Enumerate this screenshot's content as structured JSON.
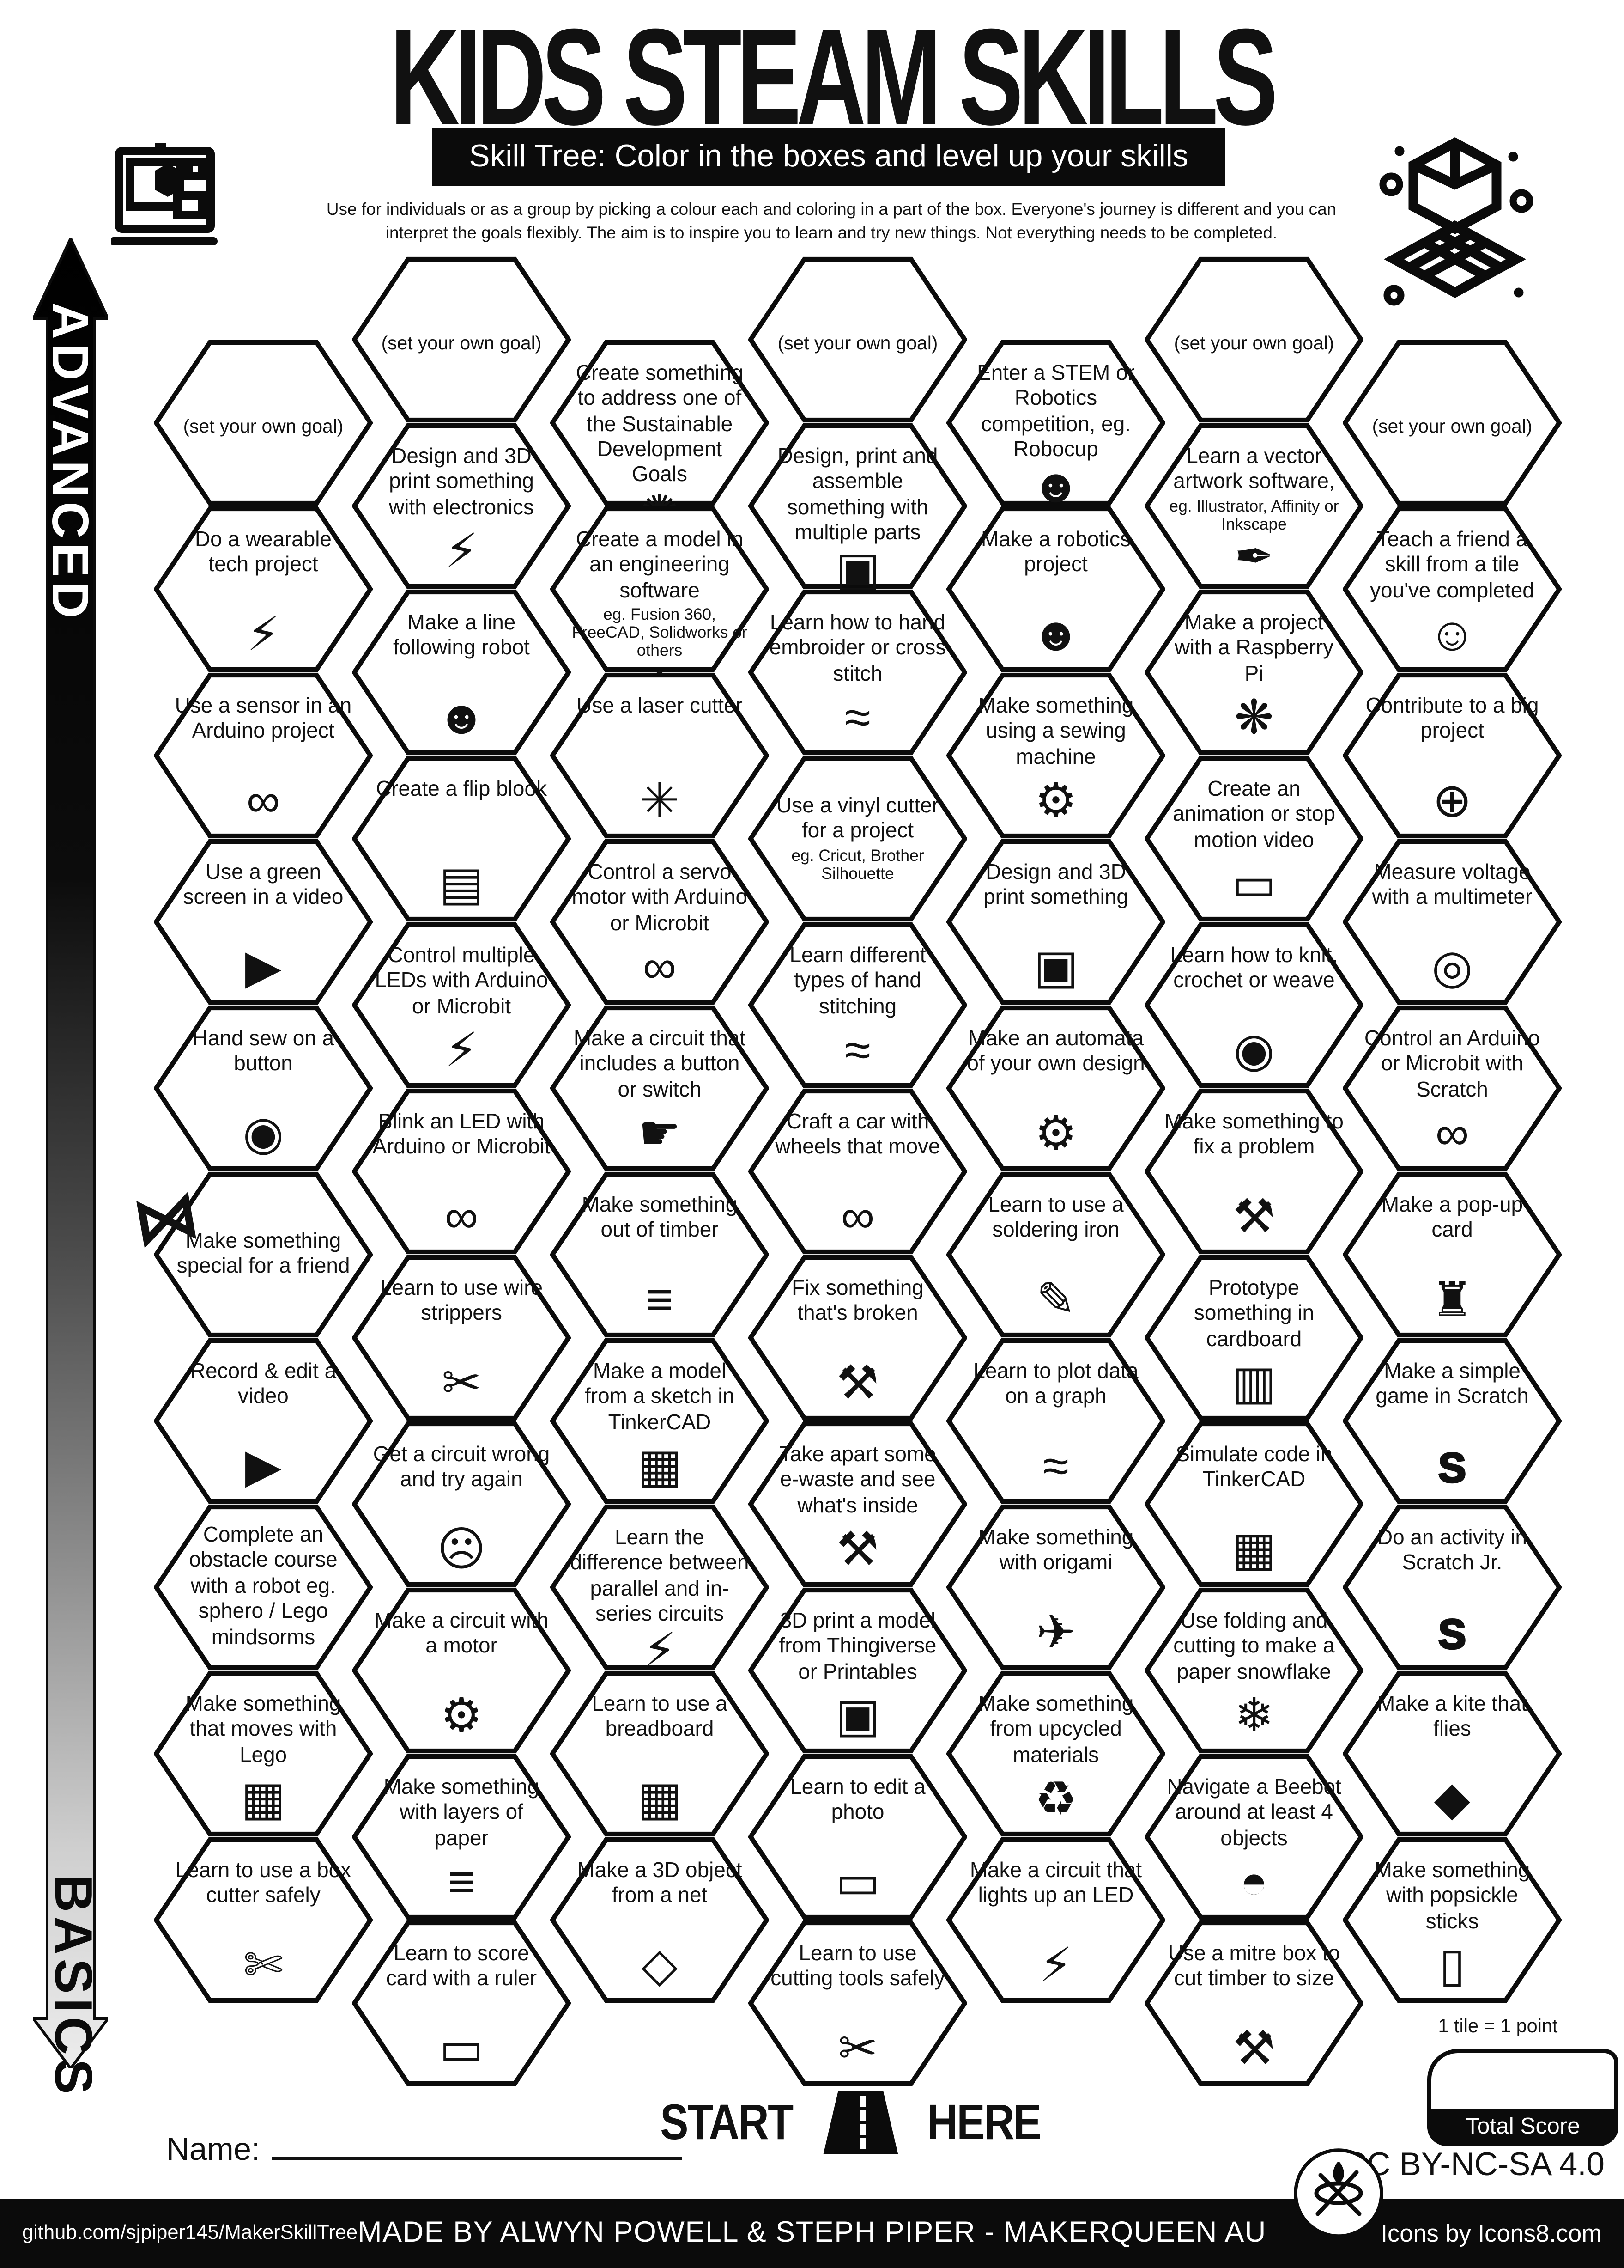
{
  "page": {
    "title": "KIDS STEAM SKILLS",
    "subtitle": "Skill Tree:  Color in the boxes and level up your skills",
    "desc1": "Use for individuals or as a group by picking a colour each and coloring in a part of the box.  Everyone's journey is different and you can",
    "desc2": "interpret the goals flexibly.  The aim is to inspire you to learn and try new things. Not everything needs to be completed."
  },
  "axis": {
    "advanced": "ADVANCED",
    "basics": "BASICS"
  },
  "start": {
    "start": "START",
    "here": "HERE"
  },
  "name_label": "Name:",
  "score": {
    "note": "1 tile = 1 point",
    "total": "Total Score"
  },
  "license": "CC BY-NC-SA 4.0",
  "footer": {
    "left": "github.com/sjpiper145/MakerSkillTree",
    "center": "MADE BY ALWYN POWELL & STEPH PIPER  -  MAKERQUEEN AU",
    "right": "Icons by Icons8.com"
  },
  "icons": {
    "wearable-led": "⚡",
    "arduino": "∞",
    "video-play": "▶",
    "button": "◉",
    "gift-bow": "⋈",
    "robot": "☻",
    "flip-book": "▤",
    "three-leds": "⚡",
    "arduino-led": "∞",
    "wire-strippers": "✂",
    "facepalm": "☹",
    "motor": "⚙",
    "paper-layers": "≡",
    "ruler": "▭",
    "sdg-wheel": "✺",
    "cad-cube": "◇",
    "laser": "✳",
    "finger-press": "☛",
    "timber": "≡",
    "tinkercad": "▦",
    "led": "⚡",
    "breadboard": "▦",
    "net-cube": "◇",
    "three-cubes": "▣",
    "embroidery": "≈",
    "car": "∞",
    "tools": "⚒",
    "printer-3d": "▣",
    "photo": "▭",
    "scissors": "✂",
    "sewing-machine": "⚙",
    "gears": "⚙",
    "soldering-iron": "✎",
    "graph": "≈",
    "origami-crane": "✈",
    "recycle": "♻",
    "pen-tool": "✒",
    "raspberry": "❋",
    "monitor": "▭",
    "yarn": "◉",
    "cardboard-box": "▥",
    "snowflake": "❄",
    "beebot": "◓",
    "mitre-box": "⚒",
    "two-people": "☺",
    "globe": "⊕",
    "multimeter": "◎",
    "popup-card": "♜",
    "scratch": "S",
    "kite": "◆",
    "popsicle": "▯",
    "box-cutter": "✄",
    "lego-brick": "▦"
  },
  "columns": [
    {
      "tiles": [
        {
          "goal": true,
          "label": "(set your own goal)"
        },
        {
          "label": "Do a wearable tech project",
          "icon": "wearable-led"
        },
        {
          "label": "Use a sensor in an Arduino project",
          "icon": "arduino"
        },
        {
          "label": "Use a green screen in a video",
          "icon": "video-play"
        },
        {
          "label": "Hand sew on a button",
          "icon": "button"
        },
        {
          "label": "Make something special for a friend"
        },
        {
          "label": "Record & edit a video",
          "icon": "video-play"
        },
        {
          "label": "Complete an obstacle course with a robot eg. sphero / Lego mindsorms"
        },
        {
          "label": "Make something that moves with Lego",
          "icon": "lego-brick"
        },
        {
          "label": "Learn to use a box cutter safely",
          "icon": "box-cutter"
        }
      ]
    },
    {
      "tiles": [
        {
          "goal": true,
          "label": "(set your own goal)"
        },
        {
          "label": "Design and 3D print something with electronics",
          "icon": "three-leds"
        },
        {
          "label": "Make a line following robot",
          "icon": "robot"
        },
        {
          "label": "Create a flip blook",
          "icon": "flip-book"
        },
        {
          "label": "Control multiple LEDs with Arduino or Microbit",
          "icon": "three-leds"
        },
        {
          "label": "Blink an LED with Arduino or Microbit",
          "icon": "arduino-led"
        },
        {
          "label": "Learn to use wire strippers",
          "icon": "wire-strippers"
        },
        {
          "label": "Get a circuit wrong and try again",
          "icon": "facepalm"
        },
        {
          "label": "Make a circuit with a motor",
          "icon": "motor"
        },
        {
          "label": "Make something with layers of paper",
          "icon": "paper-layers"
        },
        {
          "label": "Learn to score card with a ruler",
          "icon": "ruler"
        }
      ]
    },
    {
      "tiles": [
        {
          "label": "Create something to address one of the Sustainable Development Goals",
          "icon": "sdg-wheel"
        },
        {
          "label": "Create a model in an engineering software",
          "sub": "eg. Fusion 360, FreeCAD, Solidworks or others",
          "icon": "cad-cube"
        },
        {
          "label": "Use a laser cutter",
          "icon": "laser"
        },
        {
          "label": "Control a servo motor with Arduino or Microbit",
          "icon": "arduino"
        },
        {
          "label": "Make a circuit that includes a button or switch",
          "icon": "finger-press"
        },
        {
          "label": "Make something out of timber",
          "icon": "timber"
        },
        {
          "label": "Make a model from a sketch in TinkerCAD",
          "icon": "tinkercad"
        },
        {
          "label": "Learn the difference between parallel and in-series circuits",
          "icon": "led"
        },
        {
          "label": "Learn to use a breadboard",
          "icon": "breadboard"
        },
        {
          "label": "Make a 3D object from a net",
          "icon": "net-cube"
        }
      ]
    },
    {
      "tiles": [
        {
          "goal": true,
          "label": "(set your own goal)"
        },
        {
          "label": "Design, print and assemble something with multiple parts",
          "icon": "three-cubes"
        },
        {
          "label": "Learn how to hand embroider or cross stitch",
          "icon": "embroidery"
        },
        {
          "label": "Use a vinyl cutter for a project",
          "sub": "eg. Cricut, Brother Silhouette"
        },
        {
          "label": "Learn different types of hand stitching",
          "icon": "embroidery"
        },
        {
          "label": "Craft a car with wheels that move",
          "icon": "car"
        },
        {
          "label": "Fix something that's broken",
          "icon": "tools"
        },
        {
          "label": "Take apart some e-waste and see what's inside",
          "icon": "tools"
        },
        {
          "label": "3D print a model from Thingiverse or Printables",
          "icon": "printer-3d"
        },
        {
          "label": "Learn to edit a photo",
          "icon": "photo"
        },
        {
          "label": "Learn to use cutting tools safely",
          "icon": "scissors"
        }
      ]
    },
    {
      "tiles": [
        {
          "label": "Enter a STEM or Robotics competition, eg. Robocup",
          "icon": "robot"
        },
        {
          "label": "Make a robotics project",
          "icon": "robot"
        },
        {
          "label": "Make something using a sewing machine",
          "icon": "sewing-machine"
        },
        {
          "label": "Design and 3D print something",
          "icon": "printer-3d"
        },
        {
          "label": "Make an automata of your own design",
          "icon": "gears"
        },
        {
          "label": "Learn to use a soldering iron",
          "icon": "soldering-iron"
        },
        {
          "label": "Learn to plot data on a graph",
          "icon": "graph"
        },
        {
          "label": "Make something with origami",
          "icon": "origami-crane"
        },
        {
          "label": "Make something from upcycled materials",
          "icon": "recycle"
        },
        {
          "label": "Make a circuit that lights up an LED",
          "icon": "led"
        }
      ]
    },
    {
      "tiles": [
        {
          "goal": true,
          "label": "(set your own goal)"
        },
        {
          "label": "Learn a vector artwork software,",
          "sub": "eg. Illustrator, Affinity or Inkscape",
          "icon": "pen-tool"
        },
        {
          "label": "Make a project with a Raspberry Pi",
          "icon": "raspberry"
        },
        {
          "label": "Create an animation or stop motion video",
          "icon": "monitor"
        },
        {
          "label": "Learn how to knit, crochet or weave",
          "icon": "yarn"
        },
        {
          "label": "Make something to fix a problem",
          "icon": "tools"
        },
        {
          "label": "Prototype something in cardboard",
          "icon": "cardboard-box"
        },
        {
          "label": "Simulate code in TinkerCAD",
          "icon": "tinkercad"
        },
        {
          "label": "Use folding and cutting to make a paper snowflake",
          "icon": "snowflake"
        },
        {
          "label": "Navigate a Beebot around at least 4 objects",
          "icon": "beebot"
        },
        {
          "label": "Use a mitre box to cut timber to size",
          "icon": "mitre-box"
        }
      ]
    },
    {
      "tiles": [
        {
          "goal": true,
          "label": "(set your own goal)"
        },
        {
          "label": "Teach a friend a skill from a tile you've completed",
          "icon": "two-people"
        },
        {
          "label": "Contribute to a big project",
          "icon": "globe"
        },
        {
          "label": "Measure voltage with a multimeter",
          "icon": "multimeter"
        },
        {
          "label": "Control an Arduino or Microbit with Scratch",
          "icon": "arduino"
        },
        {
          "label": "Make a pop-up card",
          "icon": "popup-card"
        },
        {
          "label": "Make a simple game in Scratch",
          "icon": "scratch"
        },
        {
          "label": "Do an activity in Scratch Jr.",
          "icon": "scratch"
        },
        {
          "label": "Make a kite that flies",
          "icon": "kite"
        },
        {
          "label": "Make something with popsickle sticks",
          "icon": "popsicle"
        }
      ]
    }
  ]
}
